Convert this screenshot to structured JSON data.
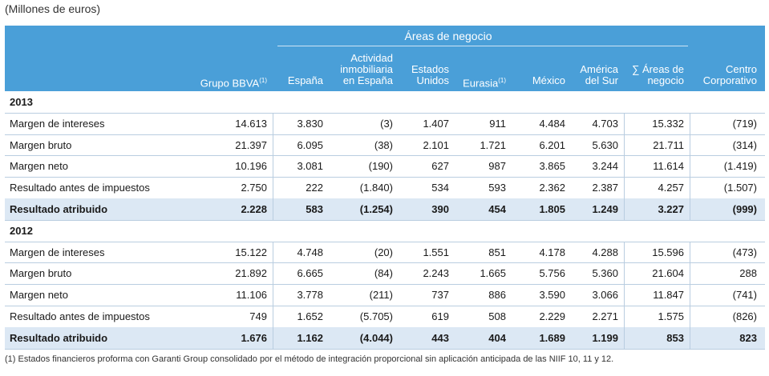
{
  "caption": "(Millones de euros)",
  "table": {
    "group_header": "Áreas de negocio",
    "columns": [
      {
        "lines": [
          "Grupo BBVA"
        ],
        "sup": "(1)"
      },
      {
        "lines": [
          "España"
        ]
      },
      {
        "lines": [
          "Actividad",
          "inmobiliaria",
          "en España"
        ]
      },
      {
        "lines": [
          "Estados",
          "Unidos"
        ]
      },
      {
        "lines": [
          "Eurasia"
        ],
        "sup": "(1)"
      },
      {
        "lines": [
          "México"
        ]
      },
      {
        "lines": [
          "América",
          "del Sur"
        ]
      },
      {
        "lines": [
          "∑ Áreas de",
          "negocio"
        ]
      },
      {
        "lines": [
          "Centro",
          "Corporativo"
        ]
      }
    ],
    "sections": [
      {
        "year": "2013",
        "rows": [
          {
            "label": "Margen de intereses",
            "cells": [
              "14.613",
              "3.830",
              "(3)",
              "1.407",
              "911",
              "4.484",
              "4.703",
              "15.332",
              "(719)"
            ]
          },
          {
            "label": "Margen bruto",
            "cells": [
              "21.397",
              "6.095",
              "(38)",
              "2.101",
              "1.721",
              "6.201",
              "5.630",
              "21.711",
              "(314)"
            ]
          },
          {
            "label": "Margen neto",
            "cells": [
              "10.196",
              "3.081",
              "(190)",
              "627",
              "987",
              "3.865",
              "3.244",
              "11.614",
              "(1.419)"
            ]
          },
          {
            "label": "Resultado antes de impuestos",
            "cells": [
              "2.750",
              "222",
              "(1.840)",
              "534",
              "593",
              "2.362",
              "2.387",
              "4.257",
              "(1.507)"
            ]
          },
          {
            "label": "Resultado atribuido",
            "cells": [
              "2.228",
              "583",
              "(1.254)",
              "390",
              "454",
              "1.805",
              "1.249",
              "3.227",
              "(999)"
            ]
          }
        ]
      },
      {
        "year": "2012",
        "rows": [
          {
            "label": "Margen de intereses",
            "cells": [
              "15.122",
              "4.748",
              "(20)",
              "1.551",
              "851",
              "4.178",
              "4.288",
              "15.596",
              "(473)"
            ]
          },
          {
            "label": "Margen bruto",
            "cells": [
              "21.892",
              "6.665",
              "(84)",
              "2.243",
              "1.665",
              "5.756",
              "5.360",
              "21.604",
              "288"
            ]
          },
          {
            "label": "Margen neto",
            "cells": [
              "11.106",
              "3.778",
              "(211)",
              "737",
              "886",
              "3.590",
              "3.066",
              "11.847",
              "(741)"
            ]
          },
          {
            "label": "Resultado antes de impuestos",
            "cells": [
              "749",
              "1.652",
              "(5.705)",
              "619",
              "508",
              "2.229",
              "2.271",
              "1.575",
              "(826)"
            ]
          },
          {
            "label": "Resultado atribuido",
            "cells": [
              "1.676",
              "1.162",
              "(4.044)",
              "443",
              "404",
              "1.689",
              "1.199",
              "853",
              "823"
            ]
          }
        ]
      }
    ]
  },
  "footnote": "(1)  Estados financieros proforma con Garanti Group consolidado por el método de integración proporcional sin aplicación anticipada de las NIIF 10, 11 y 12."
}
